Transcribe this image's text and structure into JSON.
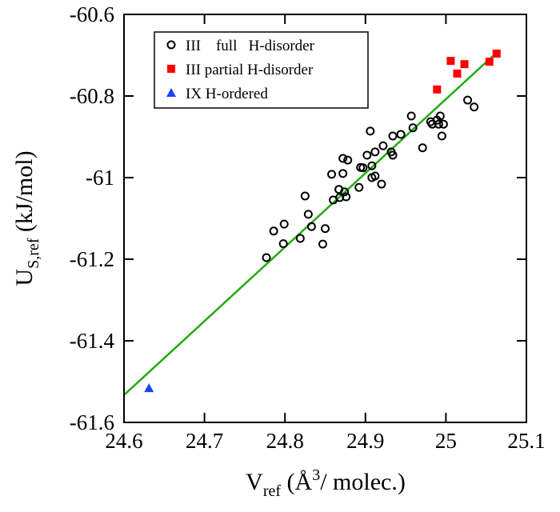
{
  "chart_data": {
    "type": "scatter",
    "xlabel": {
      "main": "V",
      "sub": "ref",
      "rest": " (Å",
      "sup": "3",
      "end": "/ molec.)"
    },
    "ylabel": {
      "main": "U",
      "sub": "S,ref",
      "rest": " (kJ/mol)"
    },
    "xlim": [
      24.6,
      25.1
    ],
    "ylim": [
      -61.6,
      -60.6
    ],
    "xticks": [
      24.6,
      24.7,
      24.8,
      24.9,
      25,
      25.1
    ],
    "yticks": [
      -60.6,
      -60.8,
      -61,
      -61.2,
      -61.4,
      -61.6
    ],
    "legend": "top-left",
    "series": [
      {
        "name": "III    full   H-disorder",
        "color": "#000000",
        "marker": "open-circle",
        "x": [
          24.777,
          24.786,
          24.799,
          24.798,
          24.819,
          24.825,
          24.829,
          24.833,
          24.847,
          24.85,
          24.858,
          24.86,
          24.867,
          24.868,
          24.872,
          24.872,
          24.874,
          24.876,
          24.878,
          24.892,
          24.894,
          24.897,
          24.902,
          24.906,
          24.908,
          24.908,
          24.912,
          24.912,
          24.92,
          24.922,
          24.932,
          24.934,
          24.934,
          24.944,
          24.957,
          24.959,
          24.971,
          24.981,
          24.983,
          24.989,
          24.991,
          24.993,
          24.995,
          24.997,
          25.027,
          25.035
        ],
        "values": [
          -61.196,
          -61.131,
          -61.114,
          -61.162,
          -61.149,
          -61.045,
          -61.09,
          -61.12,
          -61.163,
          -61.125,
          -60.992,
          -61.055,
          -61.029,
          -61.049,
          -60.953,
          -60.99,
          -61.035,
          -61.047,
          -60.957,
          -61.024,
          -60.975,
          -60.976,
          -60.945,
          -60.886,
          -61.0,
          -60.971,
          -60.937,
          -60.996,
          -61.016,
          -60.922,
          -60.937,
          -60.898,
          -60.945,
          -60.894,
          -60.849,
          -60.878,
          -60.927,
          -60.863,
          -60.869,
          -60.859,
          -60.869,
          -60.849,
          -60.898,
          -60.869,
          -60.81,
          -60.827
        ]
      },
      {
        "name": "III partial H-disorder",
        "color": "#ff0000",
        "marker": "square",
        "x": [
          24.989,
          25.006,
          25.014,
          25.023,
          25.054,
          25.063
        ],
        "values": [
          -60.784,
          -60.714,
          -60.745,
          -60.722,
          -60.716,
          -60.696
        ]
      },
      {
        "name": "IX H-ordered",
        "color": "#1f3fff",
        "marker": "triangle",
        "x": [
          24.631
        ],
        "values": [
          -61.516
        ]
      }
    ],
    "fit_line": {
      "color": "#22aa11",
      "x": [
        24.6,
        25.066
      ],
      "values": [
        -61.533,
        -60.688
      ]
    }
  }
}
